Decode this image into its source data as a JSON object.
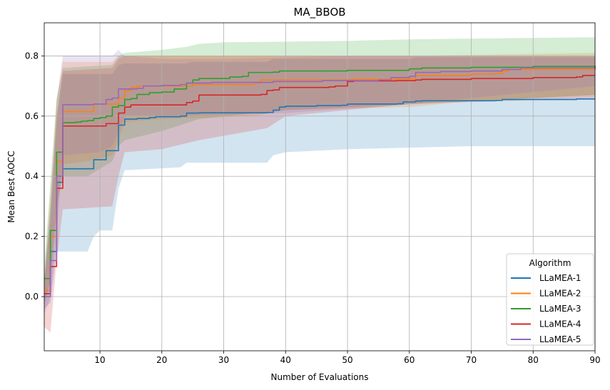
{
  "chart_data": {
    "type": "line",
    "title": "MA_BBOB",
    "xlabel": "Number of Evaluations",
    "ylabel": "Mean Best AOCC",
    "xlim": [
      1,
      90
    ],
    "ylim": [
      -0.18,
      0.91
    ],
    "xticks": [
      10,
      20,
      30,
      40,
      50,
      60,
      70,
      80,
      90
    ],
    "yticks": [
      0.0,
      0.2,
      0.4,
      0.6,
      0.8
    ],
    "xtick_labels": [
      "10",
      "20",
      "30",
      "40",
      "50",
      "60",
      "70",
      "80",
      "90"
    ],
    "ytick_labels": [
      "0.0",
      "0.2",
      "0.4",
      "0.6",
      "0.8"
    ],
    "grid": true,
    "legend": {
      "title": "Algorithm",
      "placement": "lower-right"
    },
    "series": [
      {
        "name": "LLaMEA-1",
        "color": "#1f77b4",
        "points": [
          [
            1,
            0.01
          ],
          [
            2,
            0.15
          ],
          [
            3,
            0.38
          ],
          [
            4,
            0.425
          ],
          [
            8,
            0.425
          ],
          [
            9,
            0.455
          ],
          [
            10,
            0.455
          ],
          [
            11,
            0.485
          ],
          [
            12,
            0.485
          ],
          [
            13,
            0.57
          ],
          [
            14,
            0.59
          ],
          [
            15,
            0.59
          ],
          [
            16,
            0.592
          ],
          [
            18,
            0.595
          ],
          [
            19,
            0.598
          ],
          [
            23,
            0.6
          ],
          [
            24,
            0.61
          ],
          [
            26,
            0.611
          ],
          [
            37,
            0.612
          ],
          [
            38,
            0.62
          ],
          [
            39,
            0.63
          ],
          [
            40,
            0.633
          ],
          [
            45,
            0.635
          ],
          [
            49,
            0.636
          ],
          [
            50,
            0.64
          ],
          [
            58,
            0.641
          ],
          [
            59,
            0.647
          ],
          [
            61,
            0.65
          ],
          [
            62,
            0.651
          ],
          [
            74,
            0.652
          ],
          [
            75,
            0.655
          ],
          [
            86,
            0.655
          ],
          [
            87,
            0.657
          ],
          [
            90,
            0.657
          ]
        ],
        "upper": [
          [
            1,
            0.06
          ],
          [
            2,
            0.3
          ],
          [
            3,
            0.58
          ],
          [
            4,
            0.74
          ],
          [
            12,
            0.74
          ],
          [
            13,
            0.77
          ],
          [
            14,
            0.775
          ],
          [
            24,
            0.775
          ],
          [
            25,
            0.78
          ],
          [
            37,
            0.78
          ],
          [
            38,
            0.79
          ],
          [
            60,
            0.79
          ],
          [
            61,
            0.795
          ],
          [
            90,
            0.795
          ]
        ],
        "lower": [
          [
            1,
            -0.04
          ],
          [
            2,
            -0.02
          ],
          [
            3,
            0.15
          ],
          [
            4,
            0.15
          ],
          [
            8,
            0.15
          ],
          [
            9,
            0.2
          ],
          [
            10,
            0.22
          ],
          [
            12,
            0.22
          ],
          [
            13,
            0.36
          ],
          [
            14,
            0.42
          ],
          [
            23,
            0.43
          ],
          [
            24,
            0.445
          ],
          [
            37,
            0.445
          ],
          [
            38,
            0.47
          ],
          [
            40,
            0.48
          ],
          [
            50,
            0.49
          ],
          [
            60,
            0.495
          ],
          [
            70,
            0.5
          ],
          [
            90,
            0.5
          ]
        ]
      },
      {
        "name": "LLaMEA-2",
        "color": "#ff7f0e",
        "points": [
          [
            1,
            0.02
          ],
          [
            2,
            0.2
          ],
          [
            3,
            0.45
          ],
          [
            4,
            0.615
          ],
          [
            8,
            0.615
          ],
          [
            9,
            0.64
          ],
          [
            12,
            0.64
          ],
          [
            13,
            0.66
          ],
          [
            14,
            0.685
          ],
          [
            15,
            0.695
          ],
          [
            16,
            0.7
          ],
          [
            25,
            0.705
          ],
          [
            35,
            0.71
          ],
          [
            36,
            0.72
          ],
          [
            50,
            0.72
          ],
          [
            51,
            0.722
          ],
          [
            60,
            0.725
          ],
          [
            61,
            0.735
          ],
          [
            70,
            0.74
          ],
          [
            74,
            0.742
          ],
          [
            75,
            0.75
          ],
          [
            76,
            0.755
          ],
          [
            90,
            0.76
          ]
        ],
        "upper": [
          [
            1,
            0.07
          ],
          [
            2,
            0.35
          ],
          [
            3,
            0.65
          ],
          [
            4,
            0.78
          ],
          [
            12,
            0.78
          ],
          [
            13,
            0.8
          ],
          [
            14,
            0.8
          ],
          [
            60,
            0.8
          ],
          [
            90,
            0.81
          ]
        ],
        "lower": [
          [
            1,
            -0.03
          ],
          [
            2,
            0.05
          ],
          [
            3,
            0.28
          ],
          [
            4,
            0.44
          ],
          [
            8,
            0.45
          ],
          [
            12,
            0.47
          ],
          [
            13,
            0.52
          ],
          [
            14,
            0.58
          ],
          [
            20,
            0.59
          ],
          [
            35,
            0.6
          ],
          [
            40,
            0.62
          ],
          [
            60,
            0.63
          ],
          [
            70,
            0.65
          ],
          [
            90,
            0.67
          ]
        ]
      },
      {
        "name": "LLaMEA-3",
        "color": "#2ca02c",
        "points": [
          [
            1,
            0.06
          ],
          [
            2,
            0.22
          ],
          [
            3,
            0.48
          ],
          [
            4,
            0.578
          ],
          [
            6,
            0.58
          ],
          [
            7,
            0.583
          ],
          [
            8,
            0.585
          ],
          [
            9,
            0.592
          ],
          [
            10,
            0.595
          ],
          [
            11,
            0.6
          ],
          [
            12,
            0.63
          ],
          [
            13,
            0.635
          ],
          [
            14,
            0.655
          ],
          [
            15,
            0.658
          ],
          [
            16,
            0.672
          ],
          [
            18,
            0.678
          ],
          [
            20,
            0.68
          ],
          [
            22,
            0.69
          ],
          [
            24,
            0.71
          ],
          [
            25,
            0.72
          ],
          [
            26,
            0.725
          ],
          [
            29,
            0.725
          ],
          [
            31,
            0.73
          ],
          [
            33,
            0.732
          ],
          [
            34,
            0.745
          ],
          [
            38,
            0.746
          ],
          [
            39,
            0.75
          ],
          [
            50,
            0.752
          ],
          [
            60,
            0.757
          ],
          [
            62,
            0.76
          ],
          [
            70,
            0.762
          ],
          [
            80,
            0.765
          ],
          [
            90,
            0.768
          ]
        ],
        "upper": [
          [
            1,
            0.1
          ],
          [
            2,
            0.38
          ],
          [
            3,
            0.66
          ],
          [
            4,
            0.76
          ],
          [
            12,
            0.77
          ],
          [
            13,
            0.8
          ],
          [
            14,
            0.81
          ],
          [
            20,
            0.82
          ],
          [
            24,
            0.83
          ],
          [
            26,
            0.84
          ],
          [
            30,
            0.845
          ],
          [
            50,
            0.85
          ],
          [
            60,
            0.855
          ],
          [
            80,
            0.86
          ],
          [
            90,
            0.862
          ]
        ],
        "lower": [
          [
            1,
            -0.02
          ],
          [
            2,
            0.05
          ],
          [
            3,
            0.3
          ],
          [
            4,
            0.4
          ],
          [
            8,
            0.4
          ],
          [
            12,
            0.45
          ],
          [
            13,
            0.5
          ],
          [
            14,
            0.52
          ],
          [
            20,
            0.55
          ],
          [
            26,
            0.59
          ],
          [
            40,
            0.62
          ],
          [
            60,
            0.64
          ],
          [
            80,
            0.66
          ],
          [
            90,
            0.67
          ]
        ]
      },
      {
        "name": "LLaMEA-4",
        "color": "#d62728",
        "points": [
          [
            1,
            0.01
          ],
          [
            2,
            0.1
          ],
          [
            3,
            0.36
          ],
          [
            4,
            0.567
          ],
          [
            10,
            0.567
          ],
          [
            11,
            0.575
          ],
          [
            12,
            0.575
          ],
          [
            13,
            0.61
          ],
          [
            14,
            0.63
          ],
          [
            15,
            0.637
          ],
          [
            23,
            0.637
          ],
          [
            24,
            0.645
          ],
          [
            25,
            0.65
          ],
          [
            26,
            0.67
          ],
          [
            36,
            0.672
          ],
          [
            37,
            0.685
          ],
          [
            38,
            0.687
          ],
          [
            39,
            0.695
          ],
          [
            47,
            0.697
          ],
          [
            48,
            0.7
          ],
          [
            50,
            0.715
          ],
          [
            51,
            0.717
          ],
          [
            58,
            0.718
          ],
          [
            61,
            0.72
          ],
          [
            62,
            0.722
          ],
          [
            70,
            0.725
          ],
          [
            80,
            0.728
          ],
          [
            87,
            0.73
          ],
          [
            88,
            0.735
          ],
          [
            90,
            0.735
          ]
        ],
        "upper": [
          [
            1,
            0.05
          ],
          [
            2,
            0.25
          ],
          [
            3,
            0.6
          ],
          [
            4,
            0.75
          ],
          [
            12,
            0.76
          ],
          [
            13,
            0.79
          ],
          [
            14,
            0.8
          ],
          [
            90,
            0.8
          ]
        ],
        "lower": [
          [
            1,
            -0.1
          ],
          [
            2,
            -0.12
          ],
          [
            3,
            0.12
          ],
          [
            4,
            0.29
          ],
          [
            12,
            0.3
          ],
          [
            13,
            0.4
          ],
          [
            14,
            0.48
          ],
          [
            20,
            0.49
          ],
          [
            26,
            0.52
          ],
          [
            37,
            0.56
          ],
          [
            40,
            0.6
          ],
          [
            50,
            0.62
          ],
          [
            60,
            0.64
          ],
          [
            90,
            0.66
          ]
        ]
      },
      {
        "name": "LLaMEA-5",
        "color": "#9467bd",
        "points": [
          [
            1,
            0.0
          ],
          [
            2,
            0.12
          ],
          [
            3,
            0.4
          ],
          [
            4,
            0.638
          ],
          [
            9,
            0.64
          ],
          [
            10,
            0.64
          ],
          [
            11,
            0.655
          ],
          [
            12,
            0.66
          ],
          [
            13,
            0.69
          ],
          [
            16,
            0.692
          ],
          [
            17,
            0.7
          ],
          [
            20,
            0.702
          ],
          [
            23,
            0.705
          ],
          [
            24,
            0.71
          ],
          [
            28,
            0.712
          ],
          [
            37,
            0.712
          ],
          [
            38,
            0.715
          ],
          [
            46,
            0.718
          ],
          [
            50,
            0.718
          ],
          [
            55,
            0.72
          ],
          [
            57,
            0.728
          ],
          [
            60,
            0.732
          ],
          [
            61,
            0.745
          ],
          [
            65,
            0.748
          ],
          [
            70,
            0.75
          ],
          [
            75,
            0.755
          ],
          [
            78,
            0.76
          ],
          [
            90,
            0.765
          ]
        ],
        "upper": [
          [
            1,
            0.04
          ],
          [
            2,
            0.3
          ],
          [
            3,
            0.65
          ],
          [
            4,
            0.8
          ],
          [
            12,
            0.8
          ],
          [
            13,
            0.82
          ],
          [
            14,
            0.8
          ],
          [
            20,
            0.79
          ],
          [
            30,
            0.79
          ],
          [
            50,
            0.8
          ],
          [
            90,
            0.8
          ]
        ],
        "lower": [
          [
            1,
            -0.06
          ],
          [
            2,
            0.0
          ],
          [
            3,
            0.2
          ],
          [
            4,
            0.47
          ],
          [
            10,
            0.48
          ],
          [
            12,
            0.5
          ],
          [
            13,
            0.55
          ],
          [
            14,
            0.6
          ],
          [
            20,
            0.6
          ],
          [
            40,
            0.61
          ],
          [
            60,
            0.64
          ],
          [
            90,
            0.7
          ]
        ]
      }
    ]
  }
}
